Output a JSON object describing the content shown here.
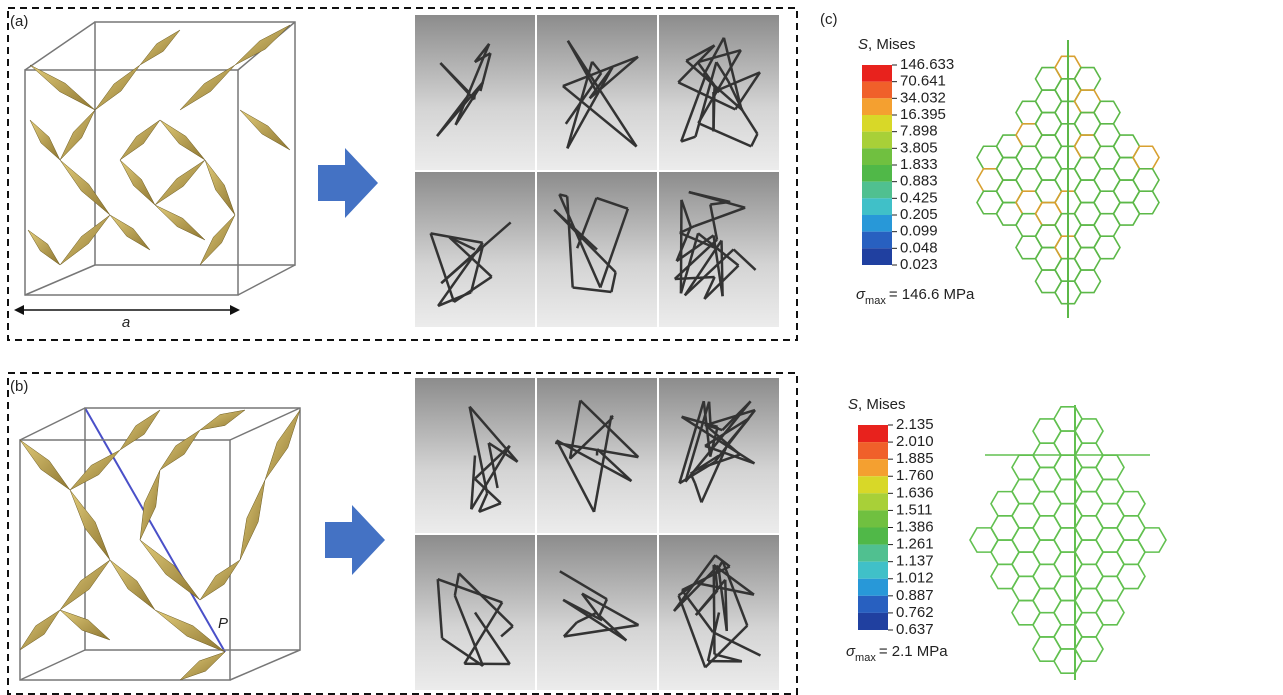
{
  "panel_a": {
    "label": "(a)",
    "dimension": "a"
  },
  "panel_b": {
    "label": "(b)",
    "point": "P"
  },
  "panel_c": {
    "label": "(c)",
    "legends": [
      {
        "symbol": "S",
        "title": ", Mises",
        "values": [
          "146.633",
          "70.641",
          "34.032",
          "16.395",
          "7.898",
          "3.805",
          "1.833",
          "0.883",
          "0.425",
          "0.205",
          "0.099",
          "0.048",
          "0.023"
        ],
        "sigma": "σ",
        "sigma_sub": "max",
        "max_text": "= 146.6 MPa"
      },
      {
        "symbol": "S",
        "title": ", Mises",
        "values": [
          "2.135",
          "2.010",
          "1.885",
          "1.760",
          "1.636",
          "1.511",
          "1.386",
          "1.261",
          "1.137",
          "1.012",
          "0.887",
          "0.762",
          "0.637"
        ],
        "sigma": "σ",
        "sigma_sub": "max",
        "max_text": "= 2.1 MPa"
      }
    ],
    "colors": [
      "#e8221d",
      "#f0602a",
      "#f4a030",
      "#d8d828",
      "#a8d038",
      "#70c040",
      "#50b848",
      "#50c090",
      "#40c0c8",
      "#2898d8",
      "#2860c0",
      "#2040a0"
    ]
  }
}
